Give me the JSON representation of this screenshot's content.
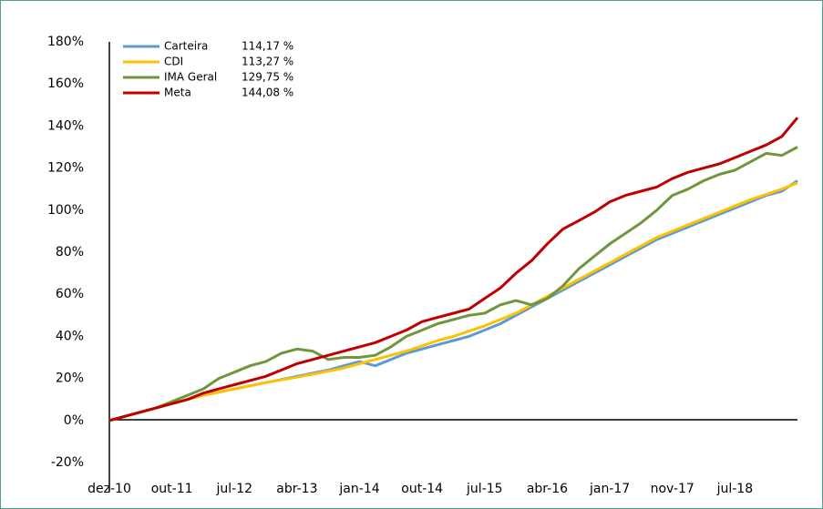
{
  "chart_data": {
    "type": "line",
    "categories": [
      "dez-10",
      null,
      null,
      null,
      "out-11",
      null,
      null,
      null,
      "jul-12",
      null,
      null,
      null,
      "abr-13",
      null,
      null,
      null,
      "jan-14",
      null,
      null,
      null,
      "out-14",
      null,
      null,
      null,
      "jul-15",
      null,
      null,
      null,
      "abr-16",
      null,
      null,
      null,
      "jan-17",
      null,
      null,
      null,
      "nov-17",
      null,
      null,
      null,
      "jul-18",
      null,
      null,
      null,
      null
    ],
    "series": [
      {
        "name": "Carteira",
        "legend_value": "114,17 %",
        "color": "#5b9bd5",
        "values": [
          0,
          2,
          4,
          6,
          8,
          10,
          12,
          13.5,
          15,
          16.5,
          18,
          19.5,
          21,
          22.5,
          24,
          26,
          28,
          26,
          29,
          32,
          34,
          36,
          38,
          40,
          43,
          46,
          50,
          54,
          58,
          62,
          66,
          70,
          74,
          78,
          82,
          86,
          89,
          92,
          95,
          98,
          101,
          104,
          107,
          109,
          114
        ]
      },
      {
        "name": "CDI",
        "legend_value": "113,27 %",
        "color": "#ffc000",
        "values": [
          0,
          2,
          4,
          6,
          8,
          10,
          12,
          13.5,
          15,
          16.5,
          18,
          19.3,
          20.6,
          22,
          23.5,
          25,
          27,
          29,
          31,
          33,
          35.5,
          38,
          40,
          42.5,
          45,
          48,
          51,
          55,
          59,
          63,
          67,
          71,
          75,
          79,
          83,
          87,
          90,
          93,
          96,
          99,
          102,
          105,
          107.5,
          110,
          113
        ]
      },
      {
        "name": "IMA Geral",
        "legend_value": "129,75 %",
        "color": "#70963c",
        "values": [
          0,
          2,
          4,
          6,
          9,
          12,
          15,
          20,
          23,
          26,
          28,
          32,
          34,
          33,
          29,
          30,
          30,
          31,
          35,
          40,
          43,
          46,
          48,
          50,
          51,
          55,
          57,
          55,
          58,
          64,
          72,
          78,
          84,
          89,
          94,
          100,
          107,
          110,
          114,
          117,
          119,
          123,
          127,
          126,
          130
        ]
      },
      {
        "name": "Meta",
        "legend_value": "144,08 %",
        "color": "#c00000",
        "values": [
          0,
          2,
          4,
          6,
          8,
          10,
          13,
          15,
          17,
          19,
          21,
          24,
          27,
          29,
          31,
          33,
          35,
          37,
          40,
          43,
          47,
          49,
          51,
          53,
          58,
          63,
          70,
          76,
          84,
          91,
          95,
          99,
          104,
          107,
          109,
          111,
          115,
          118,
          120,
          122,
          125,
          128,
          131,
          135,
          144
        ]
      }
    ],
    "ylim": [
      -20,
      180
    ],
    "yticks": [
      {
        "value": -20,
        "label": "-20%"
      },
      {
        "value": 0,
        "label": "0%"
      },
      {
        "value": 20,
        "label": "20%"
      },
      {
        "value": 40,
        "label": "40%"
      },
      {
        "value": 60,
        "label": "60%"
      },
      {
        "value": 80,
        "label": "80%"
      },
      {
        "value": 100,
        "label": "100%"
      },
      {
        "value": 120,
        "label": "120%"
      },
      {
        "value": 140,
        "label": "140%"
      },
      {
        "value": 160,
        "label": "160%"
      },
      {
        "value": 180,
        "label": "180%"
      }
    ],
    "grid": false
  }
}
